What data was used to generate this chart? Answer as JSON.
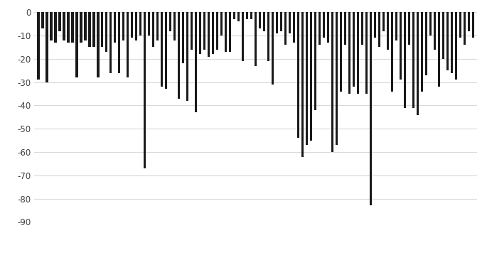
{
  "values": [
    -29,
    -7,
    -30,
    -12,
    -13,
    -8,
    -12,
    -13,
    -13,
    -28,
    -13,
    -12,
    -15,
    -15,
    -28,
    -15,
    -17,
    -26,
    -13,
    -26,
    -12,
    -28,
    -11,
    -12,
    -10,
    -67,
    -10,
    -15,
    -12,
    -32,
    -33,
    -8,
    -12,
    -37,
    -22,
    -38,
    -16,
    -43,
    -18,
    -16,
    -19,
    -18,
    -16,
    -10,
    -17,
    -17,
    -3,
    -4,
    -21,
    -3,
    -3,
    -23,
    -7,
    -8,
    -21,
    -31,
    -9,
    -8,
    -14,
    -9,
    -13,
    -54,
    -62,
    -57,
    -55,
    -42,
    -14,
    -11,
    -13,
    -60,
    -57,
    -34,
    -14,
    -35,
    -32,
    -35,
    -14,
    -35,
    -83,
    -11,
    -15,
    -8,
    -16,
    -34,
    -12,
    -29,
    -41,
    -14,
    -41,
    -44,
    -34,
    -27,
    -10,
    -16,
    -32,
    -20,
    -25,
    -26,
    -29,
    -11,
    -14,
    -8,
    -11
  ],
  "bar_color": "#1a1a1a",
  "background_color": "#ffffff",
  "plot_background": "#ffffff",
  "ylim": [
    -90,
    2
  ],
  "yticks": [
    0,
    -10,
    -20,
    -30,
    -40,
    -50,
    -60,
    -70,
    -80,
    -90
  ],
  "ylabel": "",
  "xlabel": "",
  "legend_marker_color": "#1a1a1a",
  "grid_color": "#d9d9d9",
  "bar_width": 0.55
}
